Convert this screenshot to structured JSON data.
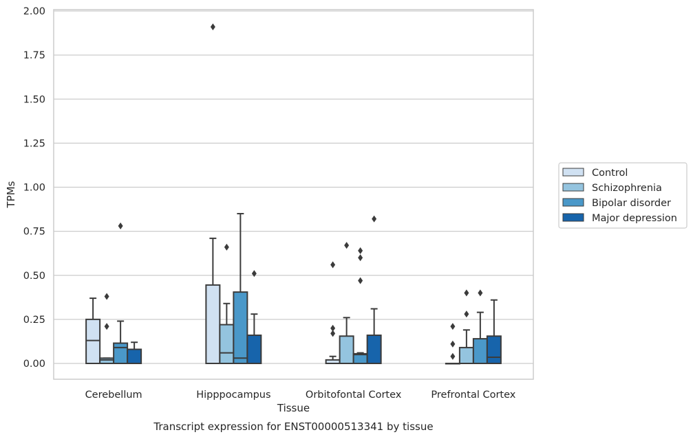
{
  "chart_data": {
    "type": "box",
    "title": "Transcript expression for ENST00000513341 by tissue",
    "xlabel": "Tissue",
    "ylabel": "TPMs",
    "ylim": [
      -0.09,
      2.0
    ],
    "yticks": [
      "0.00",
      "0.25",
      "0.50",
      "0.75",
      "1.00",
      "1.25",
      "1.50",
      "1.75",
      "2.00"
    ],
    "grid": "horizontal",
    "legend_position": "right",
    "categories": [
      "Cerebellum",
      "Hipppocampus",
      "Orbitofontal Cortex",
      "Prefrontal Cortex"
    ],
    "series": [
      {
        "name": "Control",
        "color": "#d0e1f2",
        "boxes": [
          {
            "min": 0.0,
            "q1": 0.0,
            "median": 0.13,
            "q3": 0.25,
            "max": 0.37,
            "outliers": []
          },
          {
            "min": 0.0,
            "q1": 0.0,
            "median": 0.0,
            "q3": 0.445,
            "max": 0.71,
            "outliers": [
              1.91
            ]
          },
          {
            "min": 0.0,
            "q1": 0.0,
            "median": 0.0,
            "q3": 0.02,
            "max": 0.04,
            "outliers": [
              0.17,
              0.2,
              0.56
            ]
          },
          {
            "min": 0.0,
            "q1": 0.0,
            "median": 0.0,
            "q3": 0.0,
            "max": 0.0,
            "outliers": [
              0.04,
              0.11,
              0.21
            ]
          }
        ]
      },
      {
        "name": "Schizophrenia",
        "color": "#94c4df",
        "boxes": [
          {
            "min": 0.0,
            "q1": 0.0,
            "median": 0.02,
            "q3": 0.03,
            "max": 0.03,
            "outliers": [
              0.21,
              0.38
            ]
          },
          {
            "min": 0.0,
            "q1": 0.0,
            "median": 0.06,
            "q3": 0.22,
            "max": 0.34,
            "outliers": [
              0.66
            ]
          },
          {
            "min": 0.0,
            "q1": 0.0,
            "median": 0.0,
            "q3": 0.155,
            "max": 0.26,
            "outliers": [
              0.67
            ]
          },
          {
            "min": 0.0,
            "q1": 0.0,
            "median": 0.0,
            "q3": 0.09,
            "max": 0.19,
            "outliers": [
              0.28,
              0.4
            ]
          }
        ]
      },
      {
        "name": "Bipolar disorder",
        "color": "#4a98c9",
        "boxes": [
          {
            "min": 0.0,
            "q1": 0.0,
            "median": 0.09,
            "q3": 0.115,
            "max": 0.24,
            "outliers": [
              0.78
            ]
          },
          {
            "min": 0.0,
            "q1": 0.0,
            "median": 0.03,
            "q3": 0.405,
            "max": 0.85,
            "outliers": []
          },
          {
            "min": 0.0,
            "q1": 0.0,
            "median": 0.05,
            "q3": 0.055,
            "max": 0.06,
            "outliers": [
              0.47,
              0.6,
              0.64
            ]
          },
          {
            "min": 0.0,
            "q1": 0.0,
            "median": 0.0,
            "q3": 0.14,
            "max": 0.29,
            "outliers": [
              0.4
            ]
          }
        ]
      },
      {
        "name": "Major depression",
        "color": "#1764ab",
        "boxes": [
          {
            "min": 0.0,
            "q1": 0.0,
            "median": 0.0,
            "q3": 0.08,
            "max": 0.12,
            "outliers": []
          },
          {
            "min": 0.0,
            "q1": 0.0,
            "median": 0.0,
            "q3": 0.16,
            "max": 0.28,
            "outliers": [
              0.51
            ]
          },
          {
            "min": 0.0,
            "q1": 0.0,
            "median": 0.0,
            "q3": 0.16,
            "max": 0.31,
            "outliers": [
              0.82
            ]
          },
          {
            "min": 0.0,
            "q1": 0.0,
            "median": 0.035,
            "q3": 0.155,
            "max": 0.36,
            "outliers": []
          }
        ]
      }
    ]
  }
}
